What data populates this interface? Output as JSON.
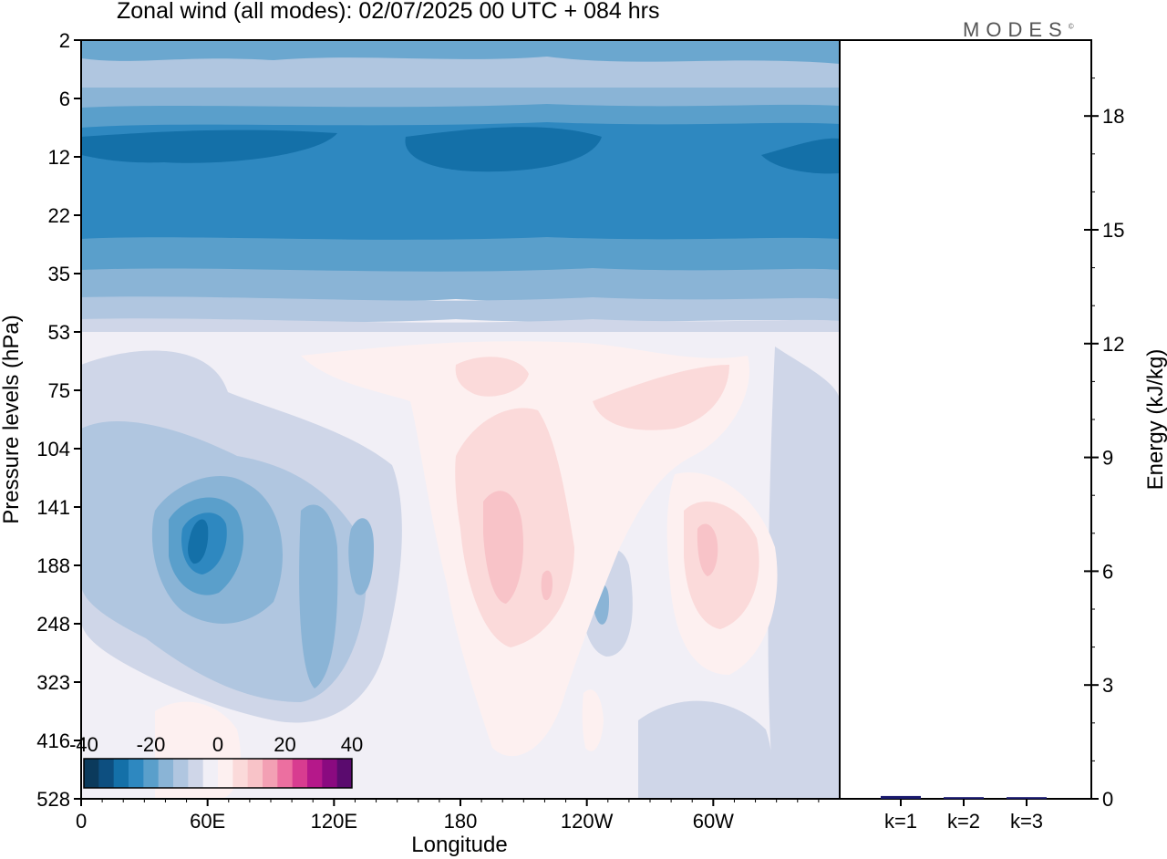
{
  "title": "Zonal wind (all modes):  02/07/2025  00 UTC  + 084 hrs",
  "logo": "MODES",
  "logo_mark": "©",
  "chart_data": [
    {
      "type": "heatmap",
      "title": "Zonal wind (all modes):  02/07/2025  00 UTC  + 084 hrs",
      "xlabel": "Longitude",
      "ylabel": "Pressure levels (hPa)",
      "x_ticks": [
        "0",
        "60E",
        "120E",
        "180",
        "120W",
        "60W"
      ],
      "y_ticks": [
        "2",
        "6",
        "12",
        "22",
        "35",
        "53",
        "75",
        "104",
        "141",
        "188",
        "248",
        "323",
        "416",
        "528"
      ],
      "y_scale": "log",
      "colorbar": {
        "labels": [
          "-40",
          "-20",
          "0",
          "20",
          "40"
        ],
        "range": [
          -40,
          40
        ],
        "colors": [
          "#0b3a5c",
          "#0d4f80",
          "#1470a8",
          "#2e88c0",
          "#5a9fcb",
          "#8ab4d6",
          "#b0c6e0",
          "#cfd6e8",
          "#f1eff6",
          "#fdf0f0",
          "#fbdada",
          "#f8c3c8",
          "#f3a0b4",
          "#ec6fa0",
          "#d83c90",
          "#b5188a",
          "#8a0a80",
          "#5a0b6e"
        ]
      },
      "regions": [
        {
          "level_from": "2",
          "level_to": "6",
          "value": -15
        },
        {
          "level_from": "6",
          "level_to": "12",
          "value": -25
        },
        {
          "level_from": "12",
          "level_to": "22",
          "value": -35
        },
        {
          "level_from": "22",
          "level_to": "35",
          "value": -25
        },
        {
          "level_from": "35",
          "level_to": "53",
          "value": -10
        },
        {
          "level_from": "53",
          "level_to": "528",
          "value": 0
        },
        {
          "lon": "60E",
          "level": "141",
          "value": -35
        },
        {
          "lon": "180",
          "level": "141",
          "value": 10
        },
        {
          "lon": "60W",
          "level": "141",
          "value": 12
        }
      ]
    },
    {
      "type": "bar",
      "categories": [
        "k=1",
        "k=2",
        "k=3"
      ],
      "values": [
        0.05,
        0.02,
        0.02
      ],
      "ylabel": "Energy (kJ/kg)",
      "y_ticks": [
        "0",
        "3",
        "6",
        "9",
        "12",
        "15",
        "18"
      ],
      "ylim": [
        0,
        20
      ],
      "bar_color": "#1a1a6e"
    }
  ]
}
